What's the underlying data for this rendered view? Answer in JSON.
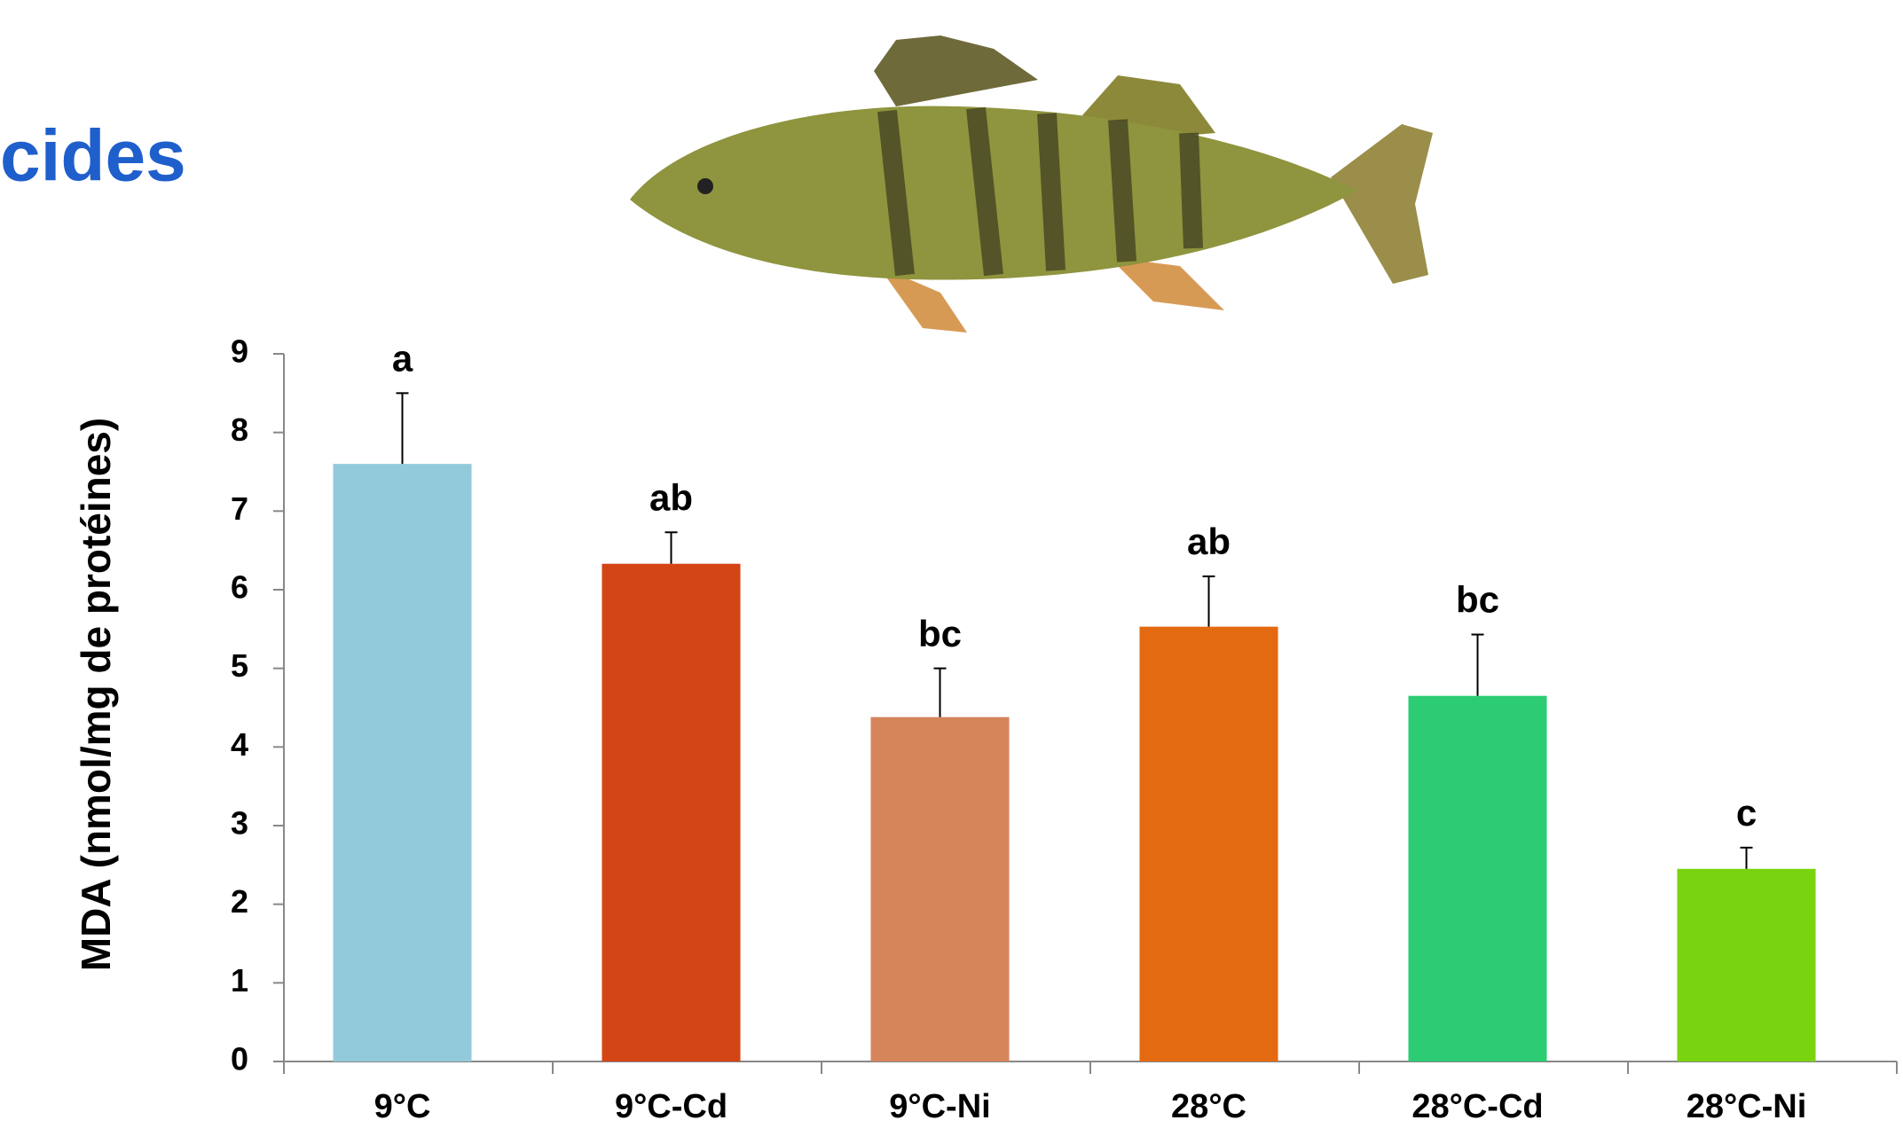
{
  "chart_data": {
    "type": "bar",
    "title": "cides",
    "y_label": "MDA (nmol/mg de protéines)",
    "categories": [
      "9°C",
      "9°C-Cd",
      "9°C-Ni",
      "28°C",
      "28°C-Cd",
      "28°C-Ni"
    ],
    "values": [
      7.6,
      6.33,
      4.38,
      5.53,
      4.65,
      2.45
    ],
    "errors": [
      0.9,
      0.4,
      0.62,
      0.64,
      0.78,
      0.27
    ],
    "letters": [
      "a",
      "ab",
      "bc",
      "ab",
      "bc",
      "c"
    ],
    "colors": [
      "#93cadb",
      "#d44516",
      "#d6845a",
      "#e36a10",
      "#2ccc74",
      "#79d30f"
    ],
    "ylim": [
      0,
      9
    ],
    "yticks": [
      0,
      1,
      2,
      3,
      4,
      5,
      6,
      7,
      8,
      9
    ],
    "grid": false
  }
}
